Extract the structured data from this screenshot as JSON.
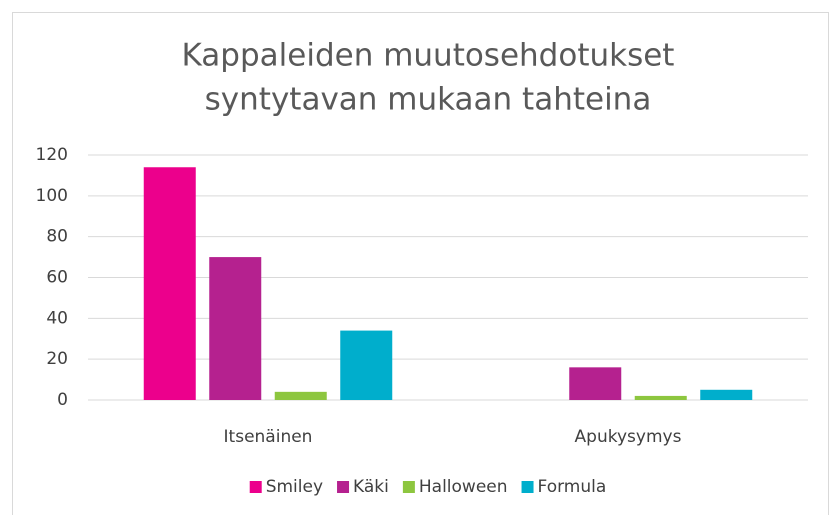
{
  "chart_data": {
    "type": "bar",
    "title": [
      "Kappaleiden muutosehdotukset",
      "syntytavan mukaan tahteina"
    ],
    "categories": [
      "Itsenäinen",
      "Apukysymys"
    ],
    "series": [
      {
        "name": "Smiley",
        "color": "#ec008c",
        "values": [
          114,
          0
        ]
      },
      {
        "name": "Käki",
        "color": "#b5218f",
        "values": [
          70,
          16
        ]
      },
      {
        "name": "Halloween",
        "color": "#8dc63f",
        "values": [
          4,
          2
        ]
      },
      {
        "name": "Formula",
        "color": "#00aecc",
        "values": [
          34,
          5
        ]
      }
    ],
    "ylim": [
      0,
      120
    ],
    "yticks": [
      0,
      20,
      40,
      60,
      80,
      100,
      120
    ],
    "grid": true,
    "legend": "bottom"
  }
}
